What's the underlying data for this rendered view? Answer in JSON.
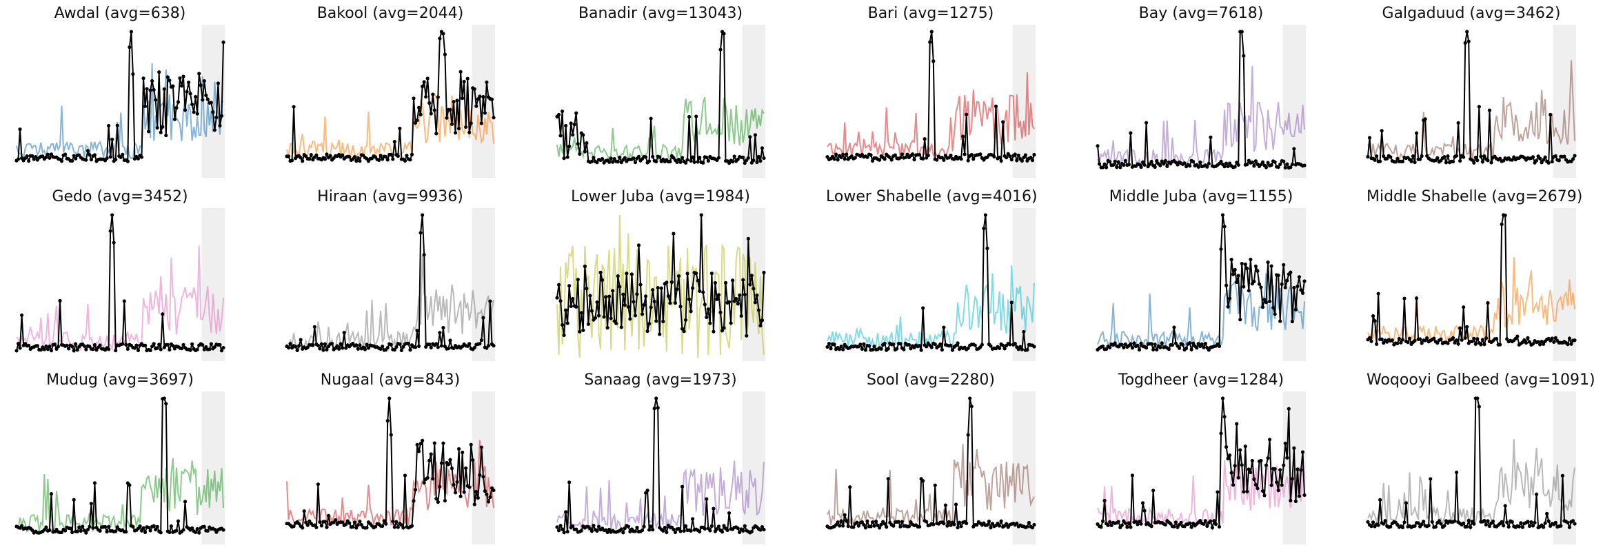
{
  "chart_data": [
    {
      "type": "line",
      "title": "Awdal   (avg=638)",
      "color": "#1f77b4",
      "seed": 11,
      "mode": "late-rise"
    },
    {
      "type": "line",
      "title": "Bakool   (avg=2044)",
      "color": "#ff7f0e",
      "seed": 23,
      "mode": "late-rise"
    },
    {
      "type": "line",
      "title": "Banadir   (avg=13043)",
      "color": "#2ca02c",
      "seed": 37,
      "mode": "flat-spike"
    },
    {
      "type": "line",
      "title": "Bari   (avg=1275)",
      "color": "#d62728",
      "seed": 41,
      "mode": "mid-spike"
    },
    {
      "type": "line",
      "title": "Bay   (avg=7618)",
      "color": "#9467bd",
      "seed": 53,
      "mode": "late-spike"
    },
    {
      "type": "line",
      "title": "Galgaduud   (avg=3462)",
      "color": "#8c564b",
      "seed": 61,
      "mode": "mid-spike"
    },
    {
      "type": "line",
      "title": "Gedo   (avg=3452)",
      "color": "#e377c2",
      "seed": 71,
      "mode": "late-spike"
    },
    {
      "type": "line",
      "title": "Hiraan   (avg=9936)",
      "color": "#7f7f7f",
      "seed": 83,
      "mode": "late-spike"
    },
    {
      "type": "line",
      "title": "Lower Juba   (avg=1984)",
      "color": "#bcbd22",
      "seed": 97,
      "mode": "noisy"
    },
    {
      "type": "line",
      "title": "Lower Shabelle   (avg=4016)",
      "color": "#17becf",
      "seed": 101,
      "mode": "mid-spike"
    },
    {
      "type": "line",
      "title": "Middle Juba   (avg=1155)",
      "color": "#1f77b4",
      "seed": 113,
      "mode": "late-rise"
    },
    {
      "type": "line",
      "title": "Middle Shabelle   (avg=2679)",
      "color": "#ff7f0e",
      "seed": 127,
      "mode": "mid-spike"
    },
    {
      "type": "line",
      "title": "Mudug   (avg=3697)",
      "color": "#2ca02c",
      "seed": 131,
      "mode": "mid-spike"
    },
    {
      "type": "line",
      "title": "Nugaal   (avg=843)",
      "color": "#d62728",
      "seed": 139,
      "mode": "late-rise"
    },
    {
      "type": "line",
      "title": "Sanaag   (avg=1973)",
      "color": "#9467bd",
      "seed": 149,
      "mode": "mid-spike"
    },
    {
      "type": "line",
      "title": "Sool   (avg=2280)",
      "color": "#8c564b",
      "seed": 151,
      "mode": "late-spike"
    },
    {
      "type": "line",
      "title": "Togdheer   (avg=1284)",
      "color": "#e377c2",
      "seed": 157,
      "mode": "late-rise"
    },
    {
      "type": "line",
      "title": "Woqooyi Galbeed   (avg=1091)",
      "color": "#7f7f7f",
      "seed": 163,
      "mode": "mid-spike"
    }
  ]
}
